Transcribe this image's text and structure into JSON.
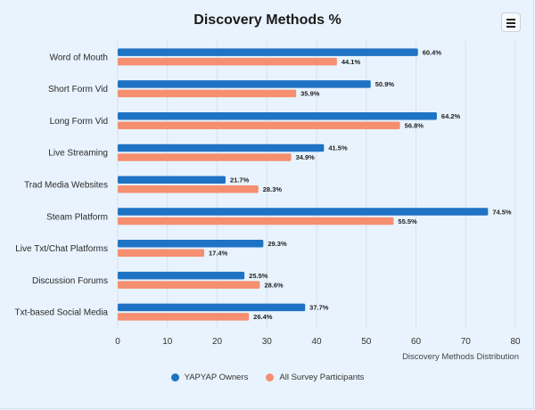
{
  "colors": {
    "series0": "#1f73c4",
    "series1": "#f58f70",
    "grid": "#d6e2ec"
  },
  "toolbar": {
    "menu_icon": "hamburger-menu-icon"
  },
  "chart_data": {
    "type": "bar",
    "orientation": "horizontal",
    "title": "Discovery Methods %",
    "xlabel": "Discovery Methods Distribution",
    "ylabel": "",
    "xlim": [
      0,
      80
    ],
    "xticks": [
      0,
      10,
      20,
      30,
      40,
      50,
      60,
      70,
      80
    ],
    "grid": true,
    "legend_position": "bottom",
    "categories": [
      "Word of Mouth",
      "Short Form Vid",
      "Long Form Vid",
      "Live Streaming",
      "Trad Media Websites",
      "Steam Platform",
      "Live Txt/Chat Platforms",
      "Discussion Forums",
      "Txt-based Social Media"
    ],
    "series": [
      {
        "name": "YAPYAP Owners",
        "values": [
          60.4,
          50.9,
          64.2,
          41.5,
          21.7,
          74.5,
          29.3,
          25.5,
          37.7
        ]
      },
      {
        "name": "All Survey Participants",
        "values": [
          44.1,
          35.9,
          56.8,
          34.9,
          28.3,
          55.5,
          17.4,
          28.6,
          26.4
        ]
      }
    ]
  }
}
